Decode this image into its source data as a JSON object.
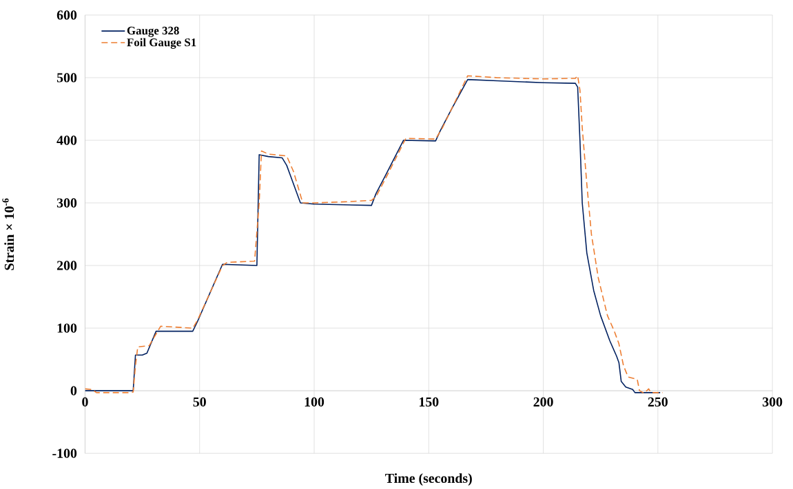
{
  "chart_data": {
    "type": "line",
    "xlabel": "Time (seconds)",
    "ylabel": "Strain × 10$^{-6}$",
    "xlim": [
      0,
      300
    ],
    "xticks": [
      0,
      50,
      100,
      150,
      200,
      250,
      300
    ],
    "ylim": [
      -100,
      600
    ],
    "yticks": [
      -100,
      0,
      100,
      200,
      300,
      400,
      500,
      600
    ],
    "grid": true,
    "legend": "top left",
    "series": [
      {
        "name": "Gauge 328",
        "color": "#002060",
        "line_style": "solid",
        "x": [
          0,
          21,
          22,
          25,
          27,
          31,
          47,
          49,
          60,
          75,
          76,
          80,
          86,
          88,
          91,
          94,
          100,
          125,
          127,
          132,
          139,
          153,
          155,
          160,
          167,
          180,
          200,
          214,
          215,
          216,
          217,
          219,
          222,
          225,
          229,
          232,
          233,
          234,
          236,
          239,
          240,
          251
        ],
        "values": [
          0,
          0,
          57,
          57,
          60,
          95,
          95,
          110,
          202,
          200,
          377,
          374,
          372,
          360,
          330,
          300,
          298,
          296,
          315,
          350,
          400,
          399,
          415,
          450,
          497,
          495,
          492,
          491,
          485,
          400,
          300,
          220,
          160,
          120,
          80,
          55,
          45,
          15,
          6,
          2,
          -3,
          -3
        ]
      },
      {
        "name": "Foil Gauge S1",
        "color": "#ed7d31",
        "line_style": "dashed",
        "x": [
          0,
          3,
          5,
          20,
          21,
          22,
          23,
          28,
          33,
          47,
          49,
          60,
          62,
          74,
          76,
          77,
          80,
          88,
          91,
          95,
          100,
          115,
          125,
          127,
          132,
          140,
          153,
          156,
          167,
          180,
          200,
          214,
          215,
          216,
          217,
          219,
          221,
          224,
          228,
          231,
          233,
          235,
          237,
          241,
          242,
          244,
          246,
          247,
          252
        ],
        "values": [
          3,
          2,
          -3,
          -3,
          -2,
          40,
          70,
          72,
          103,
          100,
          112,
          200,
          205,
          207,
          300,
          383,
          378,
          375,
          350,
          300,
          300,
          302,
          304,
          310,
          345,
          403,
          402,
          420,
          503,
          500,
          498,
          499,
          503,
          480,
          420,
          330,
          250,
          180,
          120,
          95,
          75,
          40,
          22,
          18,
          0,
          -4,
          3,
          -3,
          -3
        ]
      }
    ]
  }
}
